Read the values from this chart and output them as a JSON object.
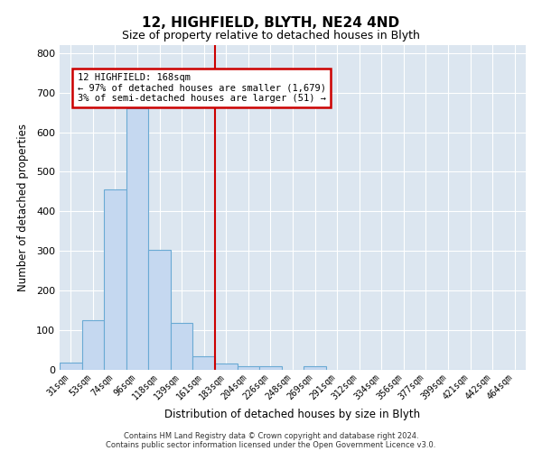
{
  "title": "12, HIGHFIELD, BLYTH, NE24 4ND",
  "subtitle": "Size of property relative to detached houses in Blyth",
  "xlabel": "Distribution of detached houses by size in Blyth",
  "ylabel": "Number of detached properties",
  "categories": [
    "31sqm",
    "53sqm",
    "74sqm",
    "96sqm",
    "118sqm",
    "139sqm",
    "161sqm",
    "183sqm",
    "204sqm",
    "226sqm",
    "248sqm",
    "269sqm",
    "291sqm",
    "312sqm",
    "334sqm",
    "356sqm",
    "377sqm",
    "399sqm",
    "421sqm",
    "442sqm",
    "464sqm"
  ],
  "values": [
    18,
    125,
    455,
    660,
    302,
    118,
    35,
    15,
    10,
    8,
    0,
    10,
    0,
    0,
    0,
    0,
    0,
    0,
    0,
    0,
    0
  ],
  "bar_color": "#c5d8f0",
  "bar_edge_color": "#6aaad4",
  "annotation_text": "12 HIGHFIELD: 168sqm\n← 97% of detached houses are smaller (1,679)\n3% of semi-detached houses are larger (51) →",
  "annotation_box_color": "#ffffff",
  "annotation_box_edge": "#cc0000",
  "vline_color": "#cc0000",
  "footer_line1": "Contains HM Land Registry data © Crown copyright and database right 2024.",
  "footer_line2": "Contains public sector information licensed under the Open Government Licence v3.0.",
  "background_color": "#dce6f0",
  "ylim": [
    0,
    820
  ],
  "yticks": [
    0,
    100,
    200,
    300,
    400,
    500,
    600,
    700,
    800
  ]
}
